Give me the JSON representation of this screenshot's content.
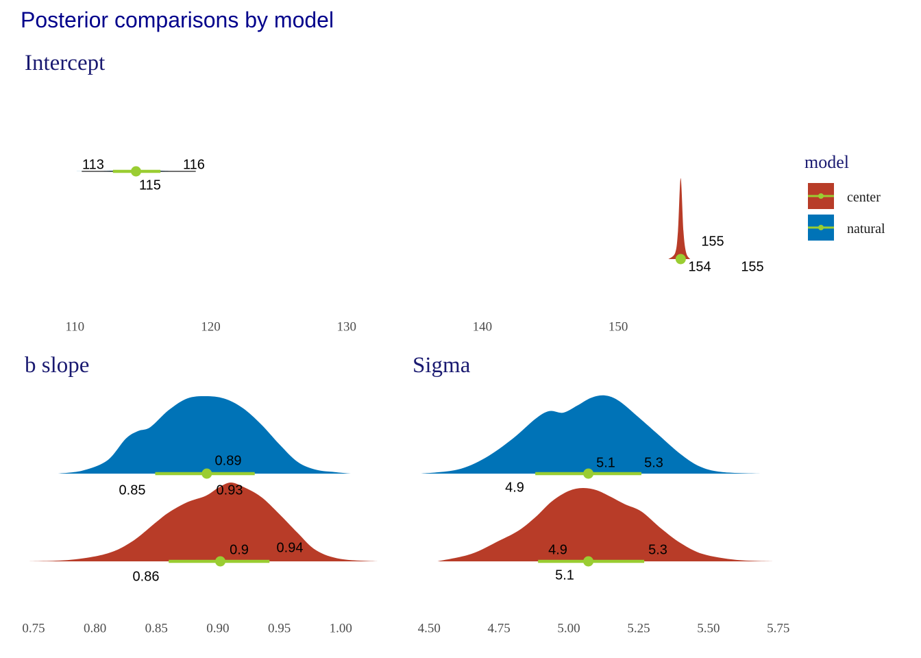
{
  "title": "Posterior comparisons by model",
  "colors": {
    "center": "#b83c28",
    "natural": "#0073b7",
    "interval": "#9acd32",
    "title": "#00008b",
    "panel_title": "#191970"
  },
  "legend": {
    "title": "model",
    "placement": "right",
    "items": [
      {
        "label": "center",
        "color": "#b83c28"
      },
      {
        "label": "natural",
        "color": "#0073b7"
      }
    ]
  },
  "chart_data": [
    {
      "type": "area",
      "title": "Intercept",
      "xlabel": "",
      "ylabel": "",
      "xlim": [
        106,
        162
      ],
      "grid": false,
      "x_ticks": [
        110,
        120,
        130,
        140,
        150
      ],
      "x_tick_labels": [
        "110",
        "120",
        "130",
        "140",
        "150"
      ],
      "series": [
        {
          "name": "natural",
          "color": "#0073b7",
          "density_x": [
            110.1,
            112,
            113,
            114.5,
            116,
            117,
            119
          ],
          "density_y": [
            0.0,
            0.02,
            0.04,
            0.05,
            0.04,
            0.02,
            0.0
          ],
          "interval": [
            112.8,
            116.3
          ],
          "estimate": 114.5,
          "labels": {
            "lower": "113",
            "upper": "116",
            "estimate": "115"
          }
        },
        {
          "name": "center",
          "color": "#b83c28",
          "density_x": [
            153.7,
            154.2,
            154.4,
            154.6,
            154.8,
            155.0,
            155.3
          ],
          "density_y": [
            0.0,
            0.08,
            0.35,
            1.0,
            0.35,
            0.08,
            0.0
          ],
          "interval": [
            154.3,
            154.9
          ],
          "estimate": 154.6,
          "labels": {
            "lower": "154",
            "upper": "155",
            "estimate": "155"
          }
        }
      ]
    },
    {
      "type": "area",
      "title": "b slope",
      "xlabel": "",
      "ylabel": "",
      "xlim": [
        0.745,
        1.035
      ],
      "grid": false,
      "x_ticks": [
        0.75,
        0.8,
        0.85,
        0.9,
        0.95,
        1.0
      ],
      "x_tick_labels": [
        "0.75",
        "0.80",
        "0.85",
        "0.90",
        "0.95",
        "1.00"
      ],
      "series": [
        {
          "name": "natural",
          "color": "#0073b7",
          "density_x": [
            0.77,
            0.79,
            0.81,
            0.825,
            0.835,
            0.845,
            0.86,
            0.875,
            0.89,
            0.905,
            0.92,
            0.935,
            0.95,
            0.965,
            0.98,
            0.995,
            1.008
          ],
          "density_y": [
            0.0,
            0.04,
            0.17,
            0.45,
            0.55,
            0.6,
            0.82,
            0.97,
            1.0,
            0.97,
            0.85,
            0.64,
            0.38,
            0.15,
            0.05,
            0.02,
            0.0
          ],
          "interval": [
            0.849,
            0.93
          ],
          "estimate": 0.891,
          "labels": {
            "lower": "0.85",
            "upper": "0.93",
            "estimate": "0.89"
          }
        },
        {
          "name": "center",
          "color": "#b83c28",
          "density_x": [
            0.745,
            0.78,
            0.81,
            0.83,
            0.85,
            0.86,
            0.875,
            0.89,
            0.9,
            0.91,
            0.92,
            0.935,
            0.95,
            0.965,
            0.98,
            1.0,
            1.03
          ],
          "density_y": [
            0.0,
            0.02,
            0.1,
            0.25,
            0.5,
            0.62,
            0.75,
            0.83,
            0.93,
            1.0,
            0.95,
            0.82,
            0.6,
            0.36,
            0.14,
            0.03,
            0.0
          ],
          "interval": [
            0.86,
            0.942
          ],
          "estimate": 0.902,
          "labels": {
            "lower": "0.86",
            "upper": "0.94",
            "estimate": "0.9"
          }
        }
      ]
    },
    {
      "type": "area",
      "title": "Sigma",
      "xlabel": "",
      "ylabel": "",
      "xlim": [
        4.47,
        5.78
      ],
      "grid": false,
      "x_ticks": [
        4.5,
        4.75,
        5.0,
        5.25,
        5.5,
        5.75
      ],
      "x_tick_labels": [
        "4.50",
        "4.75",
        "5.00",
        "5.25",
        "5.50",
        "5.75"
      ],
      "series": [
        {
          "name": "natural",
          "color": "#0073b7",
          "density_x": [
            4.47,
            4.6,
            4.7,
            4.8,
            4.88,
            4.93,
            4.98,
            5.03,
            5.08,
            5.13,
            5.18,
            5.25,
            5.32,
            5.4,
            5.47,
            5.55,
            5.69
          ],
          "density_y": [
            0.0,
            0.05,
            0.2,
            0.45,
            0.7,
            0.8,
            0.78,
            0.87,
            0.97,
            1.0,
            0.93,
            0.72,
            0.5,
            0.25,
            0.09,
            0.02,
            0.0
          ],
          "interval": [
            4.88,
            5.26
          ],
          "estimate": 5.07,
          "labels": {
            "lower": "4.9",
            "upper": "5.3",
            "estimate": "5.1"
          }
        },
        {
          "name": "center",
          "color": "#b83c28",
          "density_x": [
            4.53,
            4.65,
            4.75,
            4.82,
            4.88,
            4.94,
            5.0,
            5.05,
            5.1,
            5.15,
            5.2,
            5.26,
            5.33,
            5.4,
            5.48,
            5.6,
            5.73
          ],
          "density_y": [
            0.0,
            0.1,
            0.28,
            0.42,
            0.6,
            0.82,
            0.96,
            1.0,
            0.97,
            0.88,
            0.78,
            0.68,
            0.45,
            0.25,
            0.1,
            0.02,
            0.0
          ],
          "interval": [
            4.89,
            5.27
          ],
          "estimate": 5.07,
          "labels": {
            "lower": "4.9",
            "upper": "5.3",
            "estimate": "5.1"
          }
        }
      ]
    }
  ]
}
